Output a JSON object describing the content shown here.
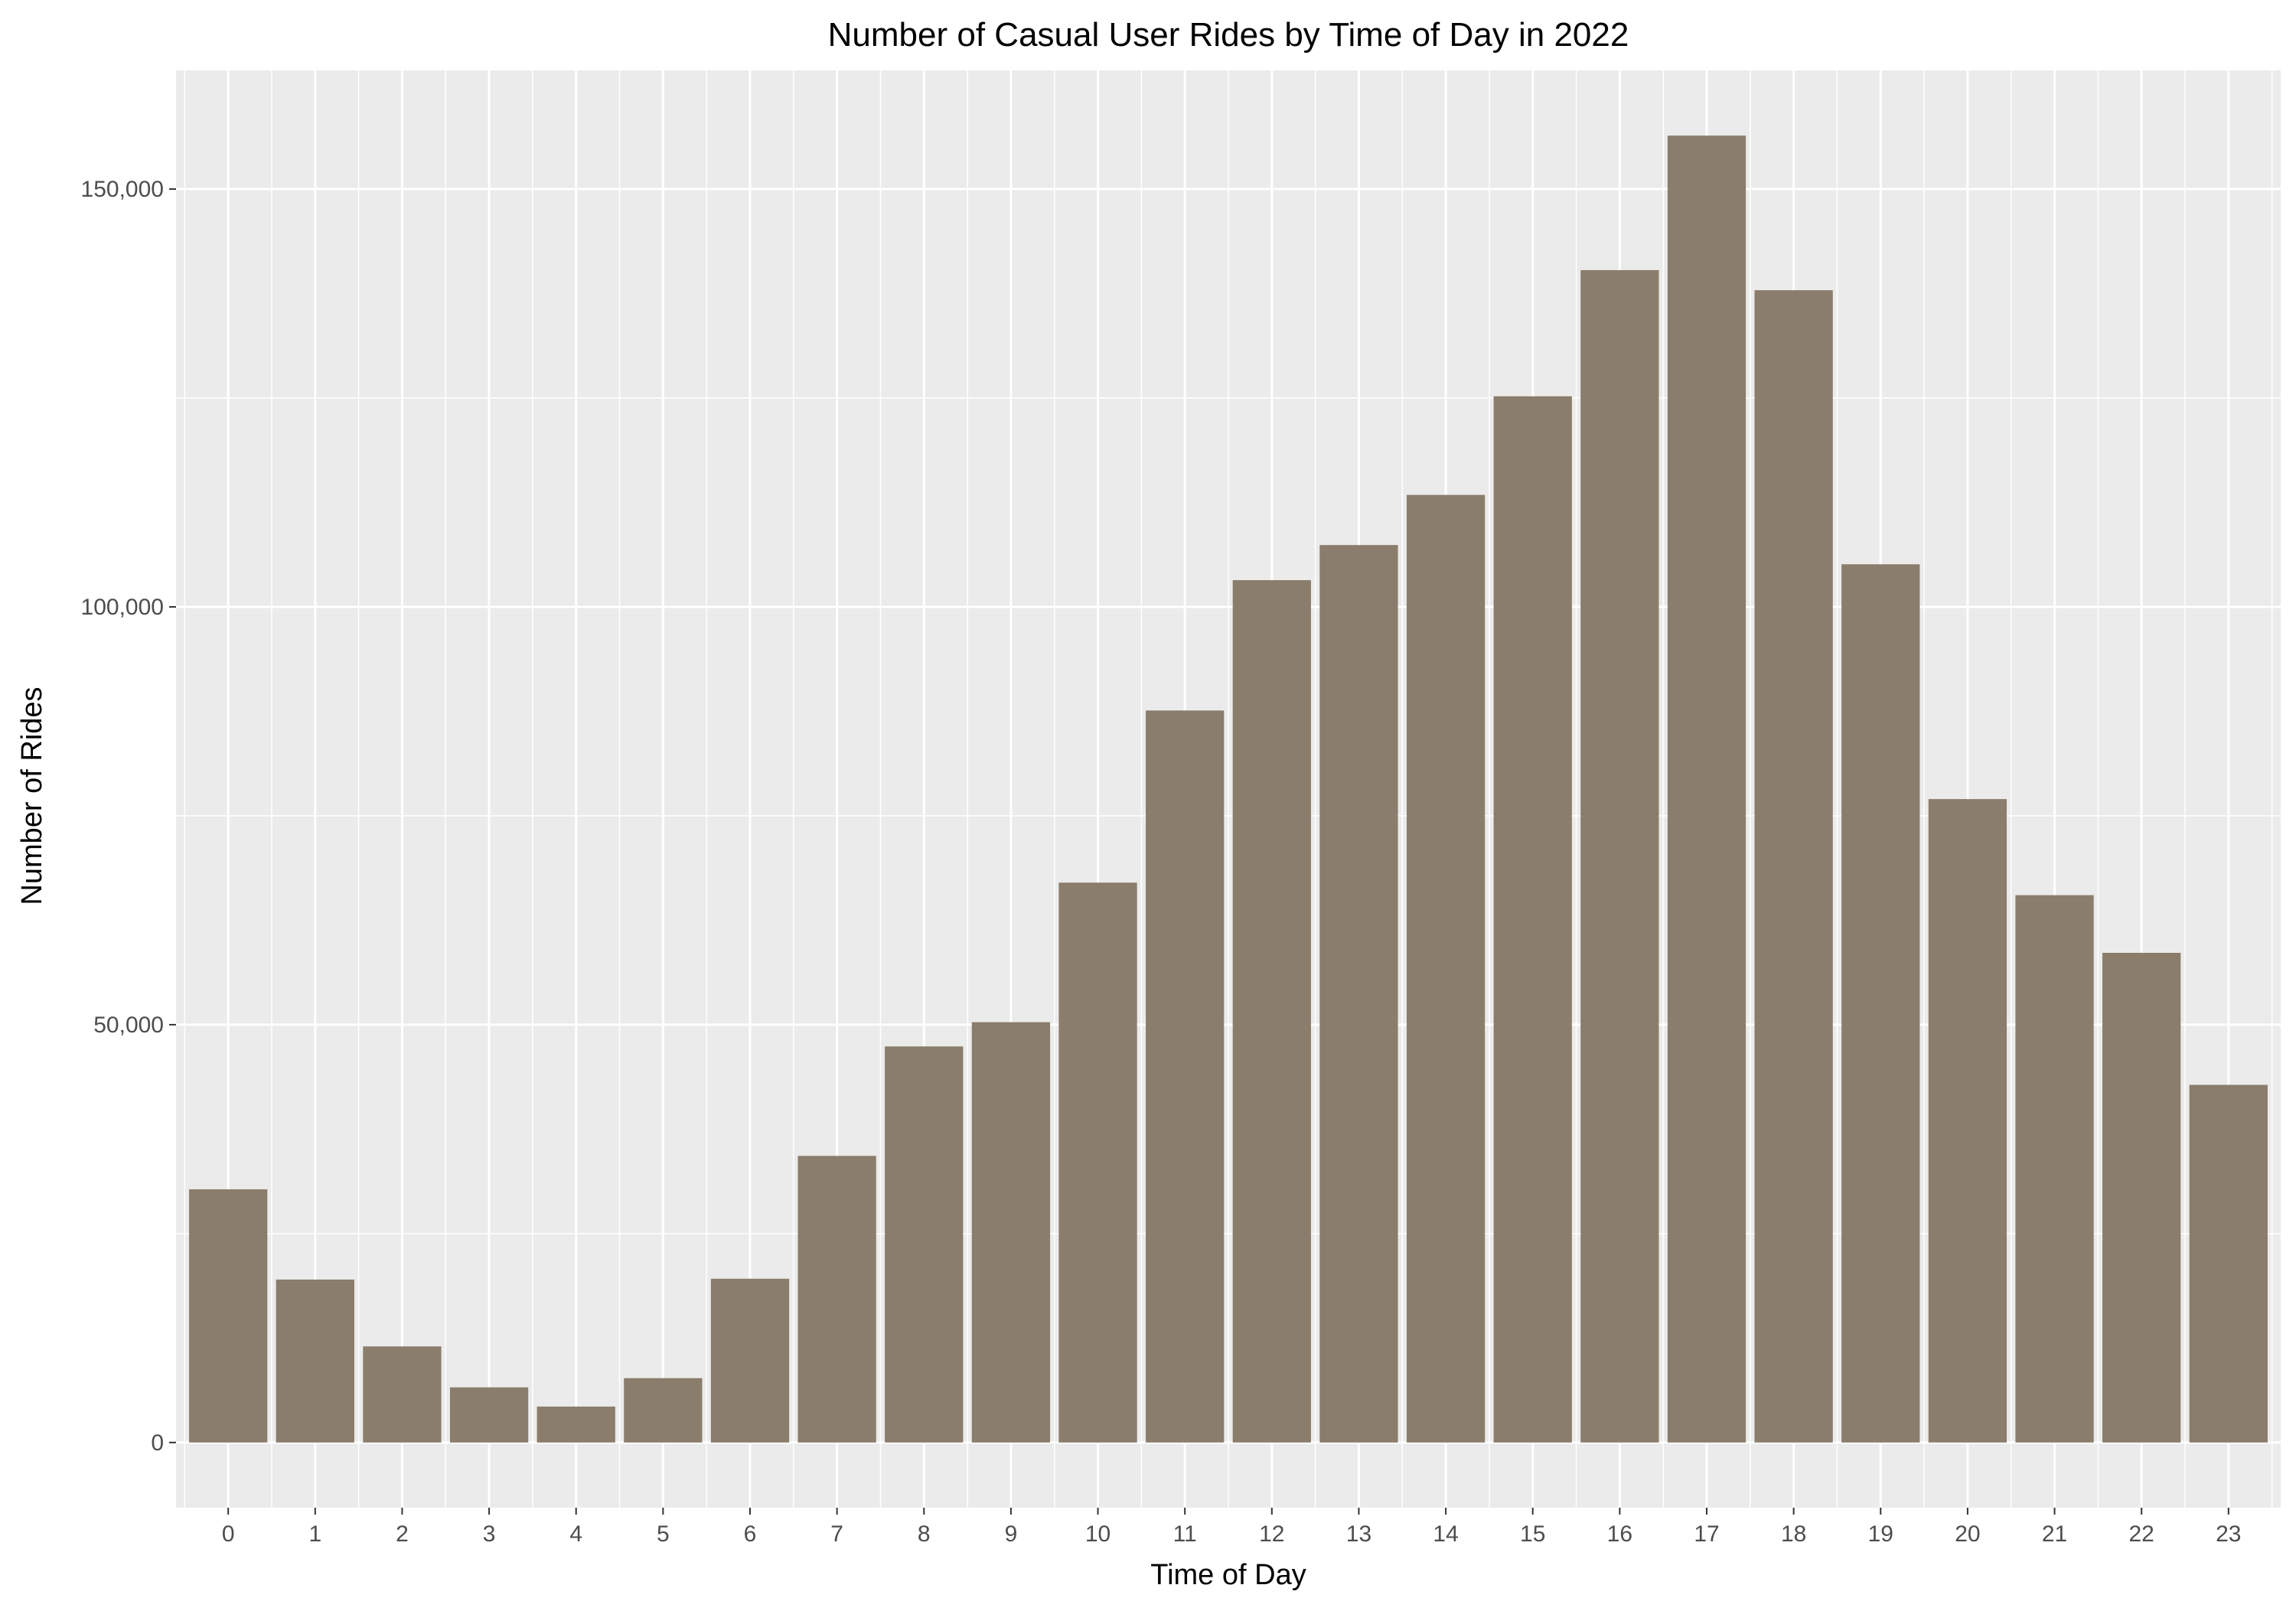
{
  "chart_data": {
    "type": "bar",
    "title": "Number of Casual User Rides by Time of Day in 2022",
    "xlabel": "Time of Day",
    "ylabel": "Number of Rides",
    "categories": [
      "0",
      "1",
      "2",
      "3",
      "4",
      "5",
      "6",
      "7",
      "8",
      "9",
      "10",
      "11",
      "12",
      "13",
      "14",
      "15",
      "16",
      "17",
      "18",
      "19",
      "20",
      "21",
      "22",
      "23"
    ],
    "values": [
      30300,
      19500,
      11500,
      6600,
      4300,
      7700,
      19600,
      34300,
      47400,
      50300,
      67000,
      87600,
      103200,
      107400,
      113400,
      125200,
      140300,
      156400,
      137900,
      105100,
      77000,
      65500,
      58600,
      42800
    ],
    "y_ticks": [
      0,
      50000,
      100000,
      150000
    ],
    "y_tick_labels": [
      "0",
      "50,000",
      "100,000",
      "150,000"
    ],
    "ylim": [
      -7800,
      164200
    ],
    "grid": true,
    "legend": "none",
    "colors": {
      "bar": "#8B7D6B",
      "panel": "#EBEBEB",
      "grid": "#FFFFFF"
    }
  }
}
